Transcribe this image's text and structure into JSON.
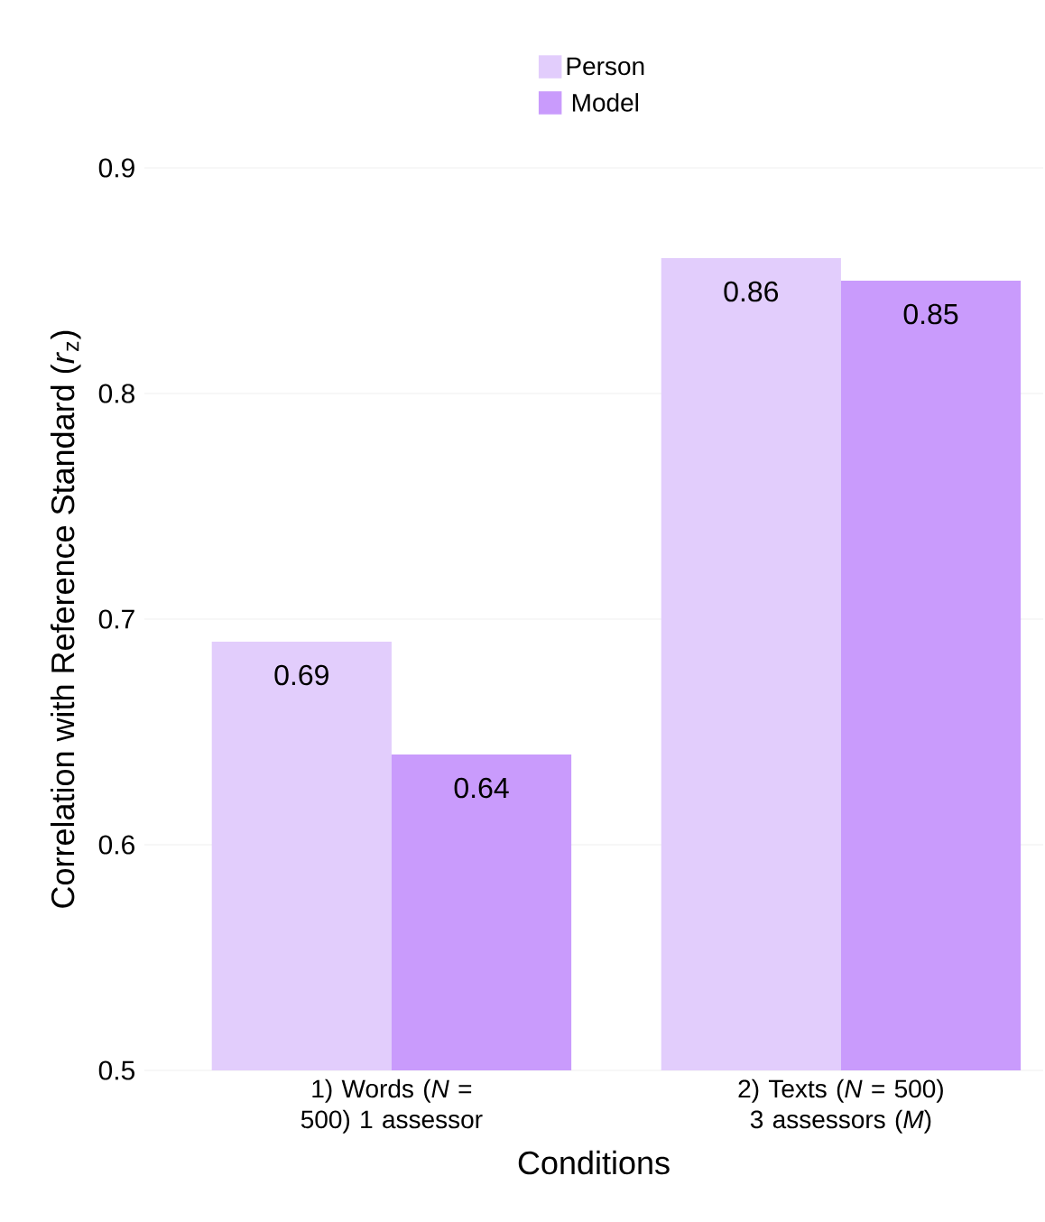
{
  "chart_data": {
    "type": "bar",
    "categories": [
      "1) Words (*N* = 500) 1 assessor",
      "2) Texts (*N* = 500) 3 assessors (*M*)"
    ],
    "series": [
      {
        "name": "Person",
        "color": "#e2cdfc",
        "values": [
          0.69,
          0.86
        ]
      },
      {
        "name": "Model",
        "color": "#c99bfc",
        "values": [
          0.64,
          0.85
        ]
      }
    ],
    "xlabel": "Conditions",
    "ylabel": "Correlation with Reference Standard (*r*$_{z}$)",
    "ylim": [
      0.5,
      0.9
    ],
    "yticks": [
      0.5,
      0.6,
      0.7,
      0.8,
      0.9
    ],
    "grid": "y",
    "legend": "top",
    "data_labels": true
  }
}
